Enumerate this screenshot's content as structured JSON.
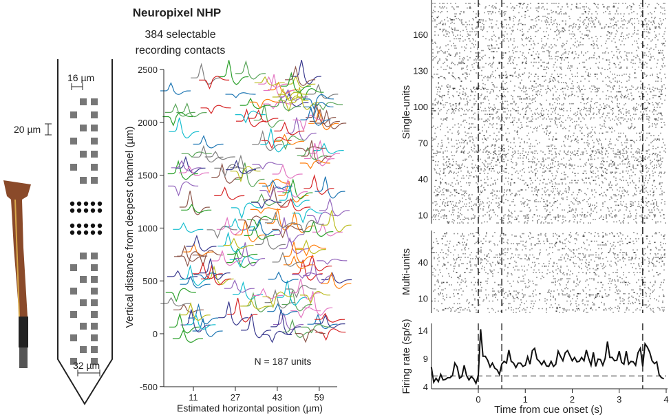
{
  "probe": {
    "title": "Neuropixel NHP",
    "subtitle_line1": "384 selectable",
    "subtitle_line2": "recording contacts",
    "dim_16": "16 µm",
    "dim_20": "20 µm",
    "dim_32": "32 µm"
  },
  "chart_data": [
    {
      "type": "line",
      "panel": "waveforms",
      "xlabel": "Estimated horizontal position (µm)",
      "ylabel": "Vertical distance from deepest channel (µm)",
      "xticks": [
        11,
        27,
        43,
        59
      ],
      "yticks": [
        -500,
        0,
        500,
        1000,
        1500,
        2000,
        2500
      ],
      "ylim": [
        -500,
        2500
      ],
      "annotation": "N = 187 units"
    },
    {
      "type": "scatter",
      "panel": "raster",
      "subpanels": [
        {
          "ylabel": "Single-units",
          "yticks": [
            10,
            40,
            70,
            100,
            130,
            160
          ]
        },
        {
          "ylabel": "Multi-units",
          "yticks": [
            10,
            40
          ]
        }
      ],
      "event_lines_s": [
        0,
        0.5,
        3.5
      ],
      "xlim": [
        -1,
        4
      ]
    },
    {
      "type": "line",
      "panel": "firing-rate",
      "xlabel": "Time from cue onset (s)",
      "ylabel": "Firing rate (sp/s)",
      "xticks": [
        0,
        1,
        2,
        3,
        4
      ],
      "yticks": [
        4,
        9,
        14
      ],
      "xlim": [
        -1,
        4
      ],
      "ylim": [
        4,
        15
      ],
      "baseline": 5.9,
      "event_lines_s": [
        0,
        0.5,
        3.5
      ],
      "x": [
        -1.0,
        -0.95,
        -0.9,
        -0.85,
        -0.8,
        -0.75,
        -0.7,
        -0.65,
        -0.6,
        -0.55,
        -0.5,
        -0.45,
        -0.4,
        -0.35,
        -0.3,
        -0.25,
        -0.2,
        -0.15,
        -0.1,
        -0.05,
        0,
        0.05,
        0.1,
        0.15,
        0.2,
        0.25,
        0.3,
        0.35,
        0.4,
        0.45,
        0.5,
        0.55,
        0.6,
        0.65,
        0.7,
        0.75,
        0.8,
        0.85,
        0.9,
        0.95,
        1.0,
        1.05,
        1.1,
        1.15,
        1.2,
        1.25,
        1.3,
        1.35,
        1.4,
        1.45,
        1.5,
        1.55,
        1.6,
        1.65,
        1.7,
        1.75,
        1.8,
        1.85,
        1.9,
        1.95,
        2.0,
        2.05,
        2.1,
        2.15,
        2.2,
        2.25,
        2.3,
        2.35,
        2.4,
        2.45,
        2.5,
        2.55,
        2.6,
        2.65,
        2.7,
        2.75,
        2.8,
        2.85,
        2.9,
        2.95,
        3.0,
        3.05,
        3.1,
        3.15,
        3.2,
        3.25,
        3.3,
        3.35,
        3.4,
        3.45,
        3.5,
        3.55,
        3.6,
        3.65,
        3.7,
        3.75,
        3.8,
        3.85,
        3.9,
        3.95
      ],
      "y": [
        7.5,
        4.8,
        5.5,
        4.9,
        6.2,
        5.2,
        5.3,
        5.6,
        5.6,
        6.0,
        8.2,
        7.5,
        5.5,
        5.8,
        7.8,
        6.0,
        5.2,
        5.8,
        5.4,
        4.6,
        6.0,
        14.2,
        9.4,
        9.4,
        8.7,
        7.5,
        8.2,
        7.3,
        7.0,
        6.2,
        8.0,
        8.5,
        8.2,
        10.5,
        8.5,
        8.2,
        7.4,
        8.2,
        8.2,
        7.6,
        7.8,
        9.3,
        8.0,
        10.4,
        10.8,
        8.9,
        8.5,
        7.9,
        8.6,
        7.7,
        7.6,
        8.5,
        7.6,
        8.0,
        10.3,
        9.4,
        8.6,
        10.0,
        10.4,
        9.5,
        8.6,
        9.2,
        8.4,
        8.5,
        9.2,
        8.6,
        10.5,
        9.0,
        7.8,
        10.1,
        7.6,
        8.9,
        8.8,
        7.8,
        9.0,
        12.0,
        9.2,
        9.2,
        8.6,
        8.7,
        10.3,
        8.3,
        8.0,
        10.3,
        8.0,
        8.5,
        8.4,
        7.8,
        10.0,
        10.8,
        7.6,
        11.6,
        11.0,
        10.1,
        8.6,
        8.1,
        8.4,
        6.1,
        5.6,
        5.4
      ]
    }
  ],
  "colors": {
    "waveform_palette": [
      "#1f77b4",
      "#ff7f0e",
      "#2ca02c",
      "#d62728",
      "#9467bd",
      "#8c564b",
      "#e377c2",
      "#7f7f7f",
      "#bcbd22",
      "#17becf",
      "#3b3b8f",
      "#5aa55a"
    ],
    "pad": "#777777",
    "probe_wood": "#8a4a2a"
  }
}
